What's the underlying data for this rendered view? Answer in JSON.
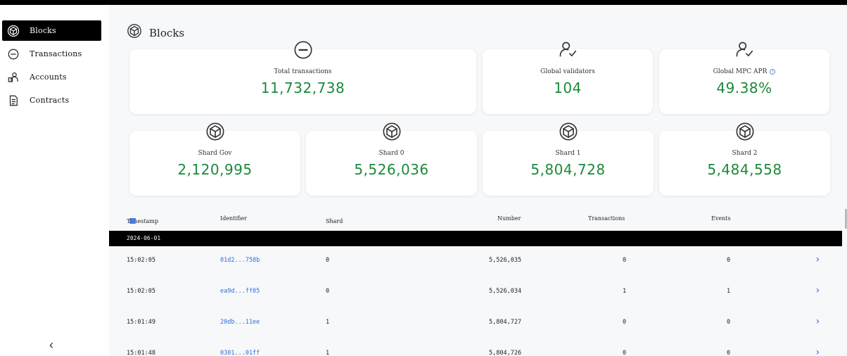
{
  "sidebar": {
    "items": [
      {
        "label": "Blocks",
        "icon": "cube-icon",
        "active": true
      },
      {
        "label": "Transactions",
        "icon": "minus-circle-icon",
        "active": false
      },
      {
        "label": "Accounts",
        "icon": "accounts-icon",
        "active": false
      },
      {
        "label": "Contracts",
        "icon": "document-icon",
        "active": false
      }
    ],
    "collapse_glyph": "‹"
  },
  "page": {
    "title": "Blocks"
  },
  "stats": [
    {
      "label": "Total transactions",
      "value": "11,732,738",
      "icon": "minus-circle-icon"
    },
    {
      "label": "Global validators",
      "value": "104",
      "icon": "validator-icon"
    },
    {
      "label": "Global MPC APR",
      "value": "49.38%",
      "icon": "validator-icon",
      "info": "i"
    },
    {
      "label": "Shard Gov",
      "value": "2,120,995",
      "icon": "cube-icon"
    },
    {
      "label": "Shard 0",
      "value": "5,526,036",
      "icon": "cube-icon"
    },
    {
      "label": "Shard 1",
      "value": "5,804,728",
      "icon": "cube-icon"
    },
    {
      "label": "Shard 2",
      "value": "5,484,558",
      "icon": "cube-icon"
    }
  ],
  "table": {
    "headers": {
      "timestamp": "Timestamp",
      "identifier": "Identifier",
      "shard": "Shard",
      "number": "Number",
      "transactions": "Transactions",
      "events": "Events"
    },
    "date_group": "2024-06-01",
    "rows": [
      {
        "time": "15:02:05",
        "id": "01d2...758b",
        "shard": "0",
        "number": "5,526,035",
        "transactions": "0",
        "events": "0"
      },
      {
        "time": "15:02:05",
        "id": "ea9d...ff05",
        "shard": "0",
        "number": "5,526,034",
        "transactions": "1",
        "events": "1"
      },
      {
        "time": "15:01:49",
        "id": "20db...11ee",
        "shard": "1",
        "number": "5,804,727",
        "transactions": "0",
        "events": "0"
      },
      {
        "time": "15:01:48",
        "id": "0301...01ff",
        "shard": "1",
        "number": "5,804,726",
        "transactions": "0",
        "events": "0"
      }
    ],
    "row_chevron": "›"
  },
  "colors": {
    "accent_green": "#1a8a3a",
    "link_blue": "#2f6fd6",
    "active_nav": "#000000"
  }
}
